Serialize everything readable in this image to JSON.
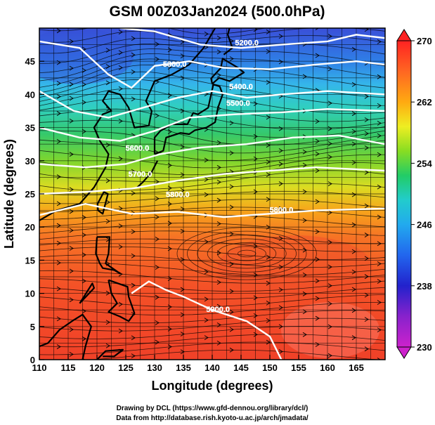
{
  "title": "GSM 00Z03Jan2024 (500.0hPa)",
  "x_axis": {
    "label": "Longitude (degrees)",
    "range": [
      110,
      170
    ],
    "ticks": [
      110,
      115,
      120,
      125,
      130,
      135,
      140,
      145,
      150,
      155,
      160,
      165
    ]
  },
  "y_axis": {
    "label": "Latitude  (degrees)",
    "range": [
      0,
      50
    ],
    "ticks": [
      0,
      5,
      10,
      15,
      20,
      25,
      30,
      35,
      40,
      45
    ]
  },
  "colorbar": {
    "range": [
      230,
      270
    ],
    "ticks": [
      270,
      262,
      254,
      246,
      238,
      230
    ],
    "colors": [
      "#cc22cc",
      "#2222cc",
      "#2299ee",
      "#22cccc",
      "#22cc66",
      "#88dd22",
      "#eeee22",
      "#ffaa11",
      "#ff6622",
      "#ff2222"
    ]
  },
  "contours": [
    {
      "label": "5200.0"
    },
    {
      "label": "5300.0"
    },
    {
      "label": "5400.0"
    },
    {
      "label": "5500.0"
    },
    {
      "label": "5600.0"
    },
    {
      "label": "5700.0"
    },
    {
      "label": "5800.0"
    },
    {
      "label": "5900.0"
    }
  ],
  "credits": {
    "line1": "Drawing by DCL (https://www.gfd-dennou.org/library/dcl/)",
    "line2": "Data from http://database.rish.kyoto-u.ac.jp/arch/jmadata/"
  }
}
